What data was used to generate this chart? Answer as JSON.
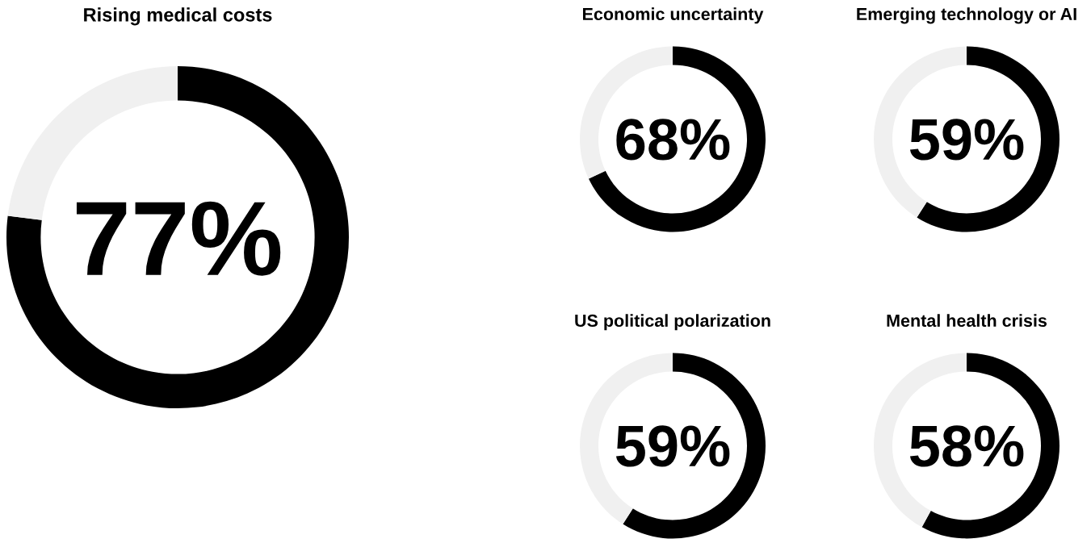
{
  "chart_data": [
    {
      "type": "donut",
      "title": "Rising medical costs",
      "categories": [
        null,
        null
      ],
      "values": [
        77,
        23
      ],
      "colors": [
        "#000000",
        "#f0f0f0"
      ],
      "value_labels": [
        "77%",
        null
      ]
    },
    {
      "type": "donut",
      "title": "Economic uncertainty",
      "categories": [
        null,
        null
      ],
      "values": [
        68,
        32
      ],
      "colors": [
        "#000000",
        "#f0f0f0"
      ],
      "value_labels": [
        "68%",
        null
      ]
    },
    {
      "type": "donut",
      "title": "Emerging technology or AI",
      "categories": [
        null,
        null
      ],
      "values": [
        59,
        41
      ],
      "colors": [
        "#000000",
        "#f0f0f0"
      ],
      "value_labels": [
        "59%",
        null
      ]
    },
    {
      "type": "donut",
      "title": "US political polarization",
      "categories": [
        null,
        null
      ],
      "values": [
        59,
        41
      ],
      "colors": [
        "#000000",
        "#f0f0f0"
      ],
      "value_labels": [
        "59%",
        null
      ]
    },
    {
      "type": "donut",
      "title": "Mental health crisis",
      "categories": [
        null,
        null
      ],
      "values": [
        58,
        42
      ],
      "colors": [
        "#000000",
        "#f0f0f0"
      ],
      "value_labels": [
        "58%",
        null
      ]
    }
  ]
}
